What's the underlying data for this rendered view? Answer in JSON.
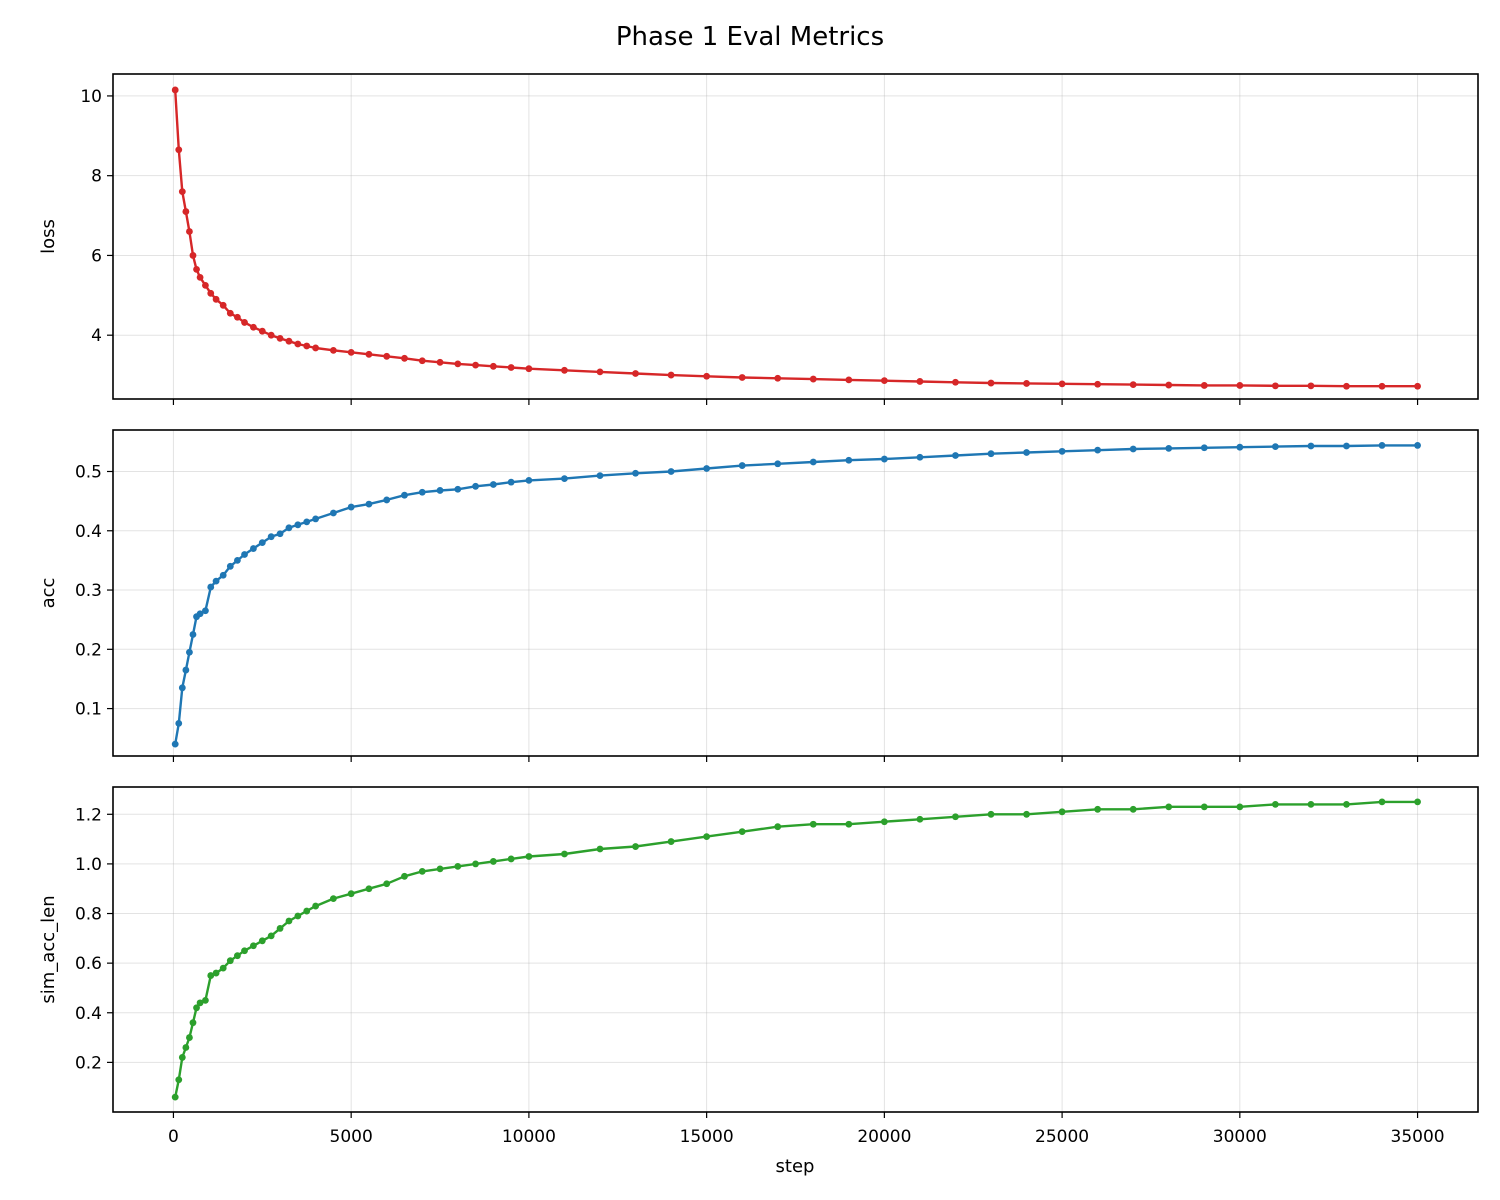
{
  "chart_data": {
    "type": "line",
    "title": "Phase 1 Eval Metrics",
    "xlabel": "step",
    "xlim": [
      -1700,
      36700
    ],
    "xticks": [
      0,
      5000,
      10000,
      15000,
      20000,
      25000,
      30000,
      35000
    ],
    "grid": true,
    "panels": [
      {
        "name": "loss",
        "ylabel": "loss",
        "color": "#d62728",
        "ylim": [
          2.4,
          10.55
        ],
        "yticks": [
          4,
          6,
          8,
          10
        ],
        "tick_format": "int",
        "series": [
          {
            "x": [
              50,
              150,
              250,
              350,
              450,
              550,
              650,
              750,
              900,
              1050,
              1200,
              1400,
              1600,
              1800,
              2000,
              2250,
              2500,
              2750,
              3000,
              3250,
              3500,
              3750,
              4000,
              4500,
              5000,
              5500,
              6000,
              6500,
              7000,
              7500,
              8000,
              8500,
              9000,
              9500,
              10000,
              11000,
              12000,
              13000,
              14000,
              15000,
              16000,
              17000,
              18000,
              19000,
              20000,
              21000,
              22000,
              23000,
              24000,
              25000,
              26000,
              27000,
              28000,
              29000,
              30000,
              31000,
              32000,
              33000,
              34000,
              35000
            ],
            "y": [
              10.15,
              8.65,
              7.6,
              7.1,
              6.6,
              6.0,
              5.65,
              5.45,
              5.25,
              5.05,
              4.9,
              4.75,
              4.55,
              4.45,
              4.32,
              4.2,
              4.1,
              4.0,
              3.92,
              3.85,
              3.78,
              3.73,
              3.68,
              3.62,
              3.57,
              3.52,
              3.47,
              3.42,
              3.36,
              3.32,
              3.28,
              3.25,
              3.22,
              3.19,
              3.16,
              3.12,
              3.08,
              3.04,
              3.0,
              2.97,
              2.94,
              2.92,
              2.9,
              2.88,
              2.86,
              2.84,
              2.82,
              2.8,
              2.79,
              2.78,
              2.77,
              2.76,
              2.75,
              2.74,
              2.74,
              2.73,
              2.73,
              2.72,
              2.72,
              2.72
            ]
          }
        ]
      },
      {
        "name": "acc",
        "ylabel": "acc",
        "color": "#1f77b4",
        "ylim": [
          0.02,
          0.57
        ],
        "yticks": [
          0.1,
          0.2,
          0.3,
          0.4,
          0.5
        ],
        "tick_format": "1dp",
        "series": [
          {
            "x": [
              50,
              150,
              250,
              350,
              450,
              550,
              650,
              750,
              900,
              1050,
              1200,
              1400,
              1600,
              1800,
              2000,
              2250,
              2500,
              2750,
              3000,
              3250,
              3500,
              3750,
              4000,
              4500,
              5000,
              5500,
              6000,
              6500,
              7000,
              7500,
              8000,
              8500,
              9000,
              9500,
              10000,
              11000,
              12000,
              13000,
              14000,
              15000,
              16000,
              17000,
              18000,
              19000,
              20000,
              21000,
              22000,
              23000,
              24000,
              25000,
              26000,
              27000,
              28000,
              29000,
              30000,
              31000,
              32000,
              33000,
              34000,
              35000
            ],
            "y": [
              0.04,
              0.075,
              0.135,
              0.165,
              0.195,
              0.225,
              0.255,
              0.26,
              0.265,
              0.305,
              0.315,
              0.325,
              0.34,
              0.35,
              0.36,
              0.37,
              0.38,
              0.39,
              0.395,
              0.405,
              0.41,
              0.415,
              0.42,
              0.43,
              0.44,
              0.445,
              0.452,
              0.46,
              0.465,
              0.468,
              0.47,
              0.475,
              0.478,
              0.482,
              0.485,
              0.488,
              0.493,
              0.497,
              0.5,
              0.505,
              0.51,
              0.513,
              0.516,
              0.519,
              0.521,
              0.524,
              0.527,
              0.53,
              0.532,
              0.534,
              0.536,
              0.538,
              0.539,
              0.54,
              0.541,
              0.542,
              0.543,
              0.543,
              0.544,
              0.544
            ]
          }
        ]
      },
      {
        "name": "sim_acc_len",
        "ylabel": "sim_acc_len",
        "color": "#2ca02c",
        "ylim": [
          0.0,
          1.31
        ],
        "yticks": [
          0.2,
          0.4,
          0.6,
          0.8,
          1.0,
          1.2
        ],
        "tick_format": "1dp",
        "series": [
          {
            "x": [
              50,
              150,
              250,
              350,
              450,
              550,
              650,
              750,
              900,
              1050,
              1200,
              1400,
              1600,
              1800,
              2000,
              2250,
              2500,
              2750,
              3000,
              3250,
              3500,
              3750,
              4000,
              4500,
              5000,
              5500,
              6000,
              6500,
              7000,
              7500,
              8000,
              8500,
              9000,
              9500,
              10000,
              11000,
              12000,
              13000,
              14000,
              15000,
              16000,
              17000,
              18000,
              19000,
              20000,
              21000,
              22000,
              23000,
              24000,
              25000,
              26000,
              27000,
              28000,
              29000,
              30000,
              31000,
              32000,
              33000,
              34000,
              35000
            ],
            "y": [
              0.06,
              0.13,
              0.22,
              0.26,
              0.3,
              0.36,
              0.42,
              0.44,
              0.45,
              0.55,
              0.56,
              0.58,
              0.61,
              0.63,
              0.65,
              0.67,
              0.69,
              0.71,
              0.74,
              0.77,
              0.79,
              0.81,
              0.83,
              0.86,
              0.88,
              0.9,
              0.92,
              0.95,
              0.97,
              0.98,
              0.99,
              1.0,
              1.01,
              1.02,
              1.03,
              1.04,
              1.06,
              1.07,
              1.09,
              1.11,
              1.13,
              1.15,
              1.16,
              1.16,
              1.17,
              1.18,
              1.19,
              1.2,
              1.2,
              1.21,
              1.22,
              1.22,
              1.23,
              1.23,
              1.23,
              1.24,
              1.24,
              1.24,
              1.25,
              1.25
            ]
          }
        ]
      }
    ]
  }
}
